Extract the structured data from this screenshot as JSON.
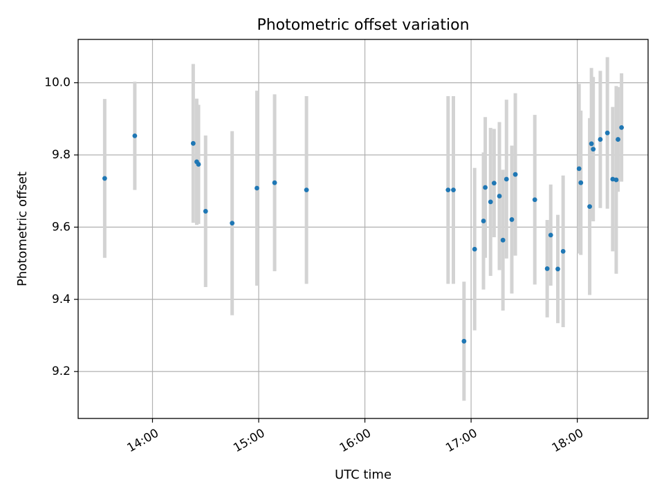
{
  "chart_data": {
    "type": "scatter",
    "title": "Photometric offset variation",
    "xlabel": "UTC time",
    "ylabel": "Photometric offset",
    "grid": true,
    "x_axis": {
      "kind": "time",
      "ticks": [
        "14:00",
        "15:00",
        "16:00",
        "17:00",
        "18:00"
      ],
      "xlim": [
        "13:18",
        "18:40"
      ]
    },
    "y_axis": {
      "ticks": [
        "9.2",
        "9.4",
        "9.6",
        "9.8",
        "10.0"
      ],
      "ylim": [
        9.07,
        10.12
      ]
    },
    "colors": {
      "point": "#1f77b4",
      "errorbar": "#d3d3d3"
    },
    "series": [
      {
        "points": [
          {
            "x": "13:33",
            "y": 9.735,
            "err": 0.22
          },
          {
            "x": "13:50",
            "y": 9.853,
            "err": 0.15
          },
          {
            "x": "14:23",
            "y": 9.832,
            "err": 0.22
          },
          {
            "x": "14:25",
            "y": 9.781,
            "err": 0.175
          },
          {
            "x": "14:26",
            "y": 9.774,
            "err": 0.165
          },
          {
            "x": "14:30",
            "y": 9.644,
            "err": 0.21
          },
          {
            "x": "14:45",
            "y": 9.611,
            "err": 0.255
          },
          {
            "x": "14:59",
            "y": 9.708,
            "err": 0.27
          },
          {
            "x": "15:09",
            "y": 9.723,
            "err": 0.245
          },
          {
            "x": "15:27",
            "y": 9.703,
            "err": 0.26
          },
          {
            "x": "16:47",
            "y": 9.703,
            "err": 0.26
          },
          {
            "x": "16:50",
            "y": 9.703,
            "err": 0.26
          },
          {
            "x": "16:56",
            "y": 9.284,
            "err": 0.165
          },
          {
            "x": "17:02",
            "y": 9.539,
            "err": 0.225
          },
          {
            "x": "17:07",
            "y": 9.617,
            "err": 0.19
          },
          {
            "x": "17:08",
            "y": 9.71,
            "err": 0.195
          },
          {
            "x": "17:11",
            "y": 9.67,
            "err": 0.205
          },
          {
            "x": "17:13",
            "y": 9.722,
            "err": 0.15
          },
          {
            "x": "17:16",
            "y": 9.686,
            "err": 0.205
          },
          {
            "x": "17:18",
            "y": 9.564,
            "err": 0.195
          },
          {
            "x": "17:20",
            "y": 9.733,
            "err": 0.22
          },
          {
            "x": "17:23",
            "y": 9.621,
            "err": 0.205
          },
          {
            "x": "17:25",
            "y": 9.746,
            "err": 0.225
          },
          {
            "x": "17:36",
            "y": 9.676,
            "err": 0.235
          },
          {
            "x": "17:43",
            "y": 9.485,
            "err": 0.135
          },
          {
            "x": "17:45",
            "y": 9.578,
            "err": 0.14
          },
          {
            "x": "17:49",
            "y": 9.484,
            "err": 0.15
          },
          {
            "x": "17:52",
            "y": 9.533,
            "err": 0.21
          },
          {
            "x": "18:01",
            "y": 9.762,
            "err": 0.235
          },
          {
            "x": "18:02",
            "y": 9.723,
            "err": 0.2
          },
          {
            "x": "18:07",
            "y": 9.657,
            "err": 0.245
          },
          {
            "x": "18:08",
            "y": 9.831,
            "err": 0.21
          },
          {
            "x": "18:09",
            "y": 9.816,
            "err": 0.2
          },
          {
            "x": "18:13",
            "y": 9.843,
            "err": 0.19
          },
          {
            "x": "18:17",
            "y": 9.861,
            "err": 0.21
          },
          {
            "x": "18:20",
            "y": 9.733,
            "err": 0.2
          },
          {
            "x": "18:22",
            "y": 9.731,
            "err": 0.26
          },
          {
            "x": "18:23",
            "y": 9.843,
            "err": 0.145
          },
          {
            "x": "18:25",
            "y": 9.876,
            "err": 0.15
          }
        ]
      }
    ]
  }
}
